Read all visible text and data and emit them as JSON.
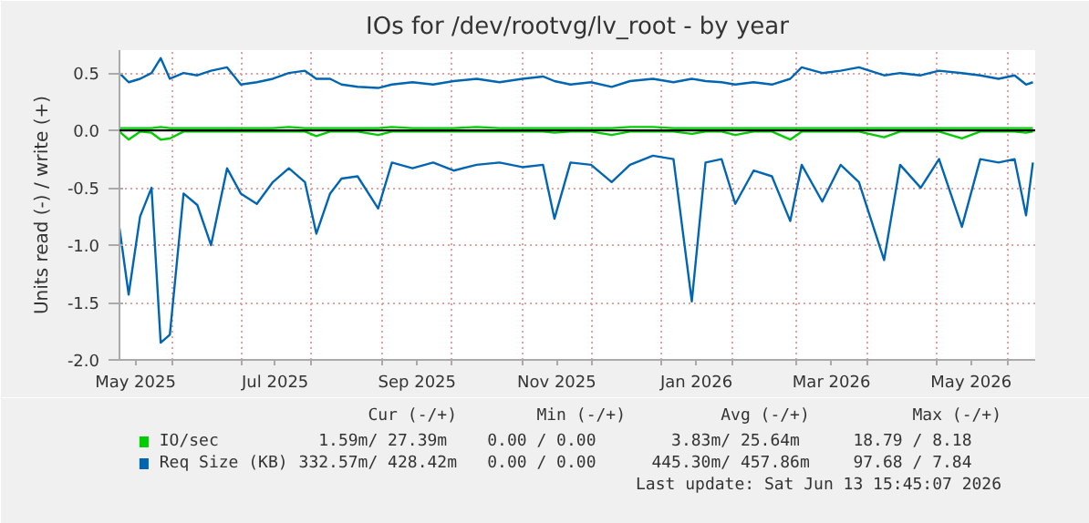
{
  "chart_data": {
    "type": "line",
    "title": "IOs for /dev/rootvg/lv_root - by year",
    "ylabel": "Units read (-) / write (+)",
    "x": [
      "2025-05-09",
      "2025-05-13",
      "2025-05-18",
      "2025-05-23",
      "2025-05-27",
      "2025-05-31",
      "2025-06-06",
      "2025-06-12",
      "2025-06-18",
      "2025-06-25",
      "2025-07-01",
      "2025-07-08",
      "2025-07-15",
      "2025-07-22",
      "2025-07-29",
      "2025-08-03",
      "2025-08-09",
      "2025-08-14",
      "2025-08-21",
      "2025-08-30",
      "2025-09-05",
      "2025-09-14",
      "2025-09-23",
      "2025-10-02",
      "2025-10-12",
      "2025-10-22",
      "2025-11-01",
      "2025-11-10",
      "2025-11-15",
      "2025-11-22",
      "2025-12-01",
      "2025-12-10",
      "2025-12-18",
      "2025-12-28",
      "2026-01-06",
      "2026-01-14",
      "2026-01-20",
      "2026-01-27",
      "2026-02-02",
      "2026-02-10",
      "2026-02-18",
      "2026-02-26",
      "2026-03-03",
      "2026-03-12",
      "2026-03-20",
      "2026-03-28",
      "2026-04-08",
      "2026-04-15",
      "2026-04-24",
      "2026-05-02",
      "2026-05-12",
      "2026-05-20",
      "2026-05-28",
      "2026-06-04",
      "2026-06-09",
      "2026-06-12"
    ],
    "series": [
      {
        "color": "#00cc00",
        "values": [
          -0.01,
          -0.08,
          -0.01,
          -0.02,
          -0.08,
          -0.07,
          -0.01,
          -0.01,
          -0.01,
          -0.01,
          -0.01,
          -0.01,
          -0.01,
          -0.01,
          -0.01,
          -0.05,
          -0.01,
          -0.01,
          -0.01,
          -0.04,
          -0.01,
          -0.01,
          -0.01,
          -0.01,
          -0.01,
          -0.01,
          -0.01,
          -0.01,
          -0.02,
          -0.01,
          -0.01,
          -0.04,
          -0.01,
          -0.01,
          -0.01,
          -0.03,
          -0.01,
          -0.01,
          -0.04,
          -0.01,
          -0.01,
          -0.08,
          -0.01,
          -0.01,
          -0.01,
          -0.01,
          -0.06,
          -0.01,
          -0.01,
          -0.01,
          -0.07,
          -0.01,
          -0.01,
          -0.01,
          -0.02,
          -0.01
        ]
      },
      {
        "name": "IO/sec",
        "color": "#00cc00",
        "values": [
          0.02,
          0.02,
          0.02,
          0.02,
          0.03,
          0.02,
          0.02,
          0.02,
          0.02,
          0.02,
          0.02,
          0.02,
          0.02,
          0.03,
          0.02,
          0.02,
          0.02,
          0.02,
          0.02,
          0.02,
          0.03,
          0.02,
          0.02,
          0.02,
          0.03,
          0.02,
          0.02,
          0.02,
          0.02,
          0.02,
          0.02,
          0.02,
          0.03,
          0.03,
          0.02,
          0.02,
          0.02,
          0.02,
          0.02,
          0.02,
          0.02,
          0.02,
          0.02,
          0.02,
          0.02,
          0.02,
          0.02,
          0.02,
          0.02,
          0.02,
          0.02,
          0.02,
          0.02,
          0.02,
          0.02,
          0.02
        ]
      },
      {
        "color": "#0066b3",
        "values": [
          -0.85,
          -1.43,
          -0.75,
          -0.5,
          -1.85,
          -1.78,
          -0.55,
          -0.65,
          -1.0,
          -0.33,
          -0.55,
          -0.64,
          -0.45,
          -0.33,
          -0.45,
          -0.9,
          -0.55,
          -0.42,
          -0.4,
          -0.68,
          -0.28,
          -0.33,
          -0.28,
          -0.35,
          -0.3,
          -0.28,
          -0.32,
          -0.3,
          -0.77,
          -0.28,
          -0.3,
          -0.45,
          -0.3,
          -0.22,
          -0.25,
          -1.49,
          -0.28,
          -0.25,
          -0.64,
          -0.35,
          -0.4,
          -0.79,
          -0.3,
          -0.62,
          -0.3,
          -0.45,
          -1.13,
          -0.3,
          -0.5,
          -0.25,
          -0.84,
          -0.25,
          -0.28,
          -0.25,
          -0.74,
          -0.28
        ]
      },
      {
        "name": "Req Size (KB)",
        "color": "#0066b3",
        "values": [
          0.5,
          0.42,
          0.45,
          0.5,
          0.63,
          0.45,
          0.5,
          0.48,
          0.52,
          0.55,
          0.4,
          0.42,
          0.45,
          0.5,
          0.52,
          0.45,
          0.45,
          0.4,
          0.38,
          0.37,
          0.4,
          0.42,
          0.4,
          0.43,
          0.45,
          0.42,
          0.45,
          0.47,
          0.43,
          0.4,
          0.42,
          0.38,
          0.43,
          0.45,
          0.42,
          0.45,
          0.43,
          0.42,
          0.4,
          0.42,
          0.4,
          0.45,
          0.55,
          0.5,
          0.52,
          0.55,
          0.48,
          0.5,
          0.48,
          0.52,
          0.5,
          0.48,
          0.45,
          0.48,
          0.4,
          0.42
        ]
      }
    ],
    "xlim": [
      "2025-05-09",
      "2026-06-13"
    ],
    "xticks": [
      {
        "value": "2025-06-01",
        "label": null
      },
      {
        "value": "2025-07-01",
        "label": null
      },
      {
        "value": "2025-08-01",
        "label": null
      },
      {
        "value": "2025-09-01",
        "label": null
      },
      {
        "value": "2025-10-01",
        "label": null
      },
      {
        "value": "2025-11-01",
        "label": null
      },
      {
        "value": "2025-12-01",
        "label": null
      },
      {
        "value": "2026-01-01",
        "label": null
      },
      {
        "value": "2026-02-01",
        "label": null
      },
      {
        "value": "2026-03-01",
        "label": null
      },
      {
        "value": "2026-04-01",
        "label": null
      },
      {
        "value": "2026-05-01",
        "label": null
      },
      {
        "value": "2026-06-01",
        "label": null
      },
      {
        "value": "2025-05-16",
        "label": "May 2025"
      },
      {
        "value": "2025-07-16",
        "label": "Jul 2025"
      },
      {
        "value": "2025-09-16",
        "label": "Sep 2025"
      },
      {
        "value": "2025-11-16",
        "label": "Nov 2025"
      },
      {
        "value": "2026-01-16",
        "label": "Jan 2026"
      },
      {
        "value": "2026-03-16",
        "label": "Mar 2026"
      },
      {
        "value": "2026-05-16",
        "label": "May 2026"
      }
    ],
    "ylim": [
      -2.0,
      0.7
    ],
    "yticks": [
      {
        "value": -2,
        "label": "-2.0"
      },
      {
        "value": -1.5,
        "label": "-1.5"
      },
      {
        "value": -1,
        "label": "-1.0"
      },
      {
        "value": -0.5,
        "label": "-0.5"
      },
      {
        "value": 0,
        "label": "0.0"
      },
      {
        "value": 0.5,
        "label": "0.5"
      }
    ],
    "ref_lines": [
      {
        "axis": "y",
        "value": 0,
        "label": null,
        "color": "#000000"
      }
    ],
    "grid": true,
    "legend": "bottom",
    "line_style": "solid",
    "annotations": [
      "Cur (-/+)",
      "Min (-/+)",
      "Avg (-/+)",
      "Max (-/+)",
      "1.59m/  27.39m",
      "0.00 /    0.00",
      "3.83m/  25.64m",
      "18.79 /    8.18",
      "332.57m/ 428.42m",
      "0.00 /    0.00",
      "445.30m/ 457.86m",
      "97.68 /    7.84",
      "Last update: Sat Jun 13 15:45:07 2026"
    ]
  }
}
